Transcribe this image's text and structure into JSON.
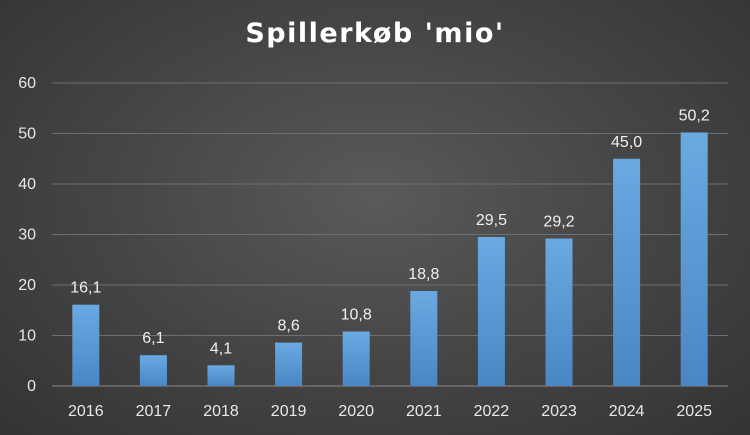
{
  "chart_data": {
    "type": "bar",
    "title": "Spillerkøb 'mio'",
    "categories": [
      "2016",
      "2017",
      "2018",
      "2019",
      "2020",
      "2021",
      "2022",
      "2023",
      "2024",
      "2025"
    ],
    "values": [
      16.1,
      6.1,
      4.1,
      8.6,
      10.8,
      18.8,
      29.5,
      29.2,
      45.0,
      50.2
    ],
    "data_labels": [
      "16,1",
      "6,1",
      "4,1",
      "8,6",
      "10,8",
      "18,8",
      "29,5",
      "29,2",
      "45,0",
      "50,2"
    ],
    "y_ticks": [
      "0",
      "10",
      "20",
      "30",
      "40",
      "50",
      "60"
    ],
    "ylim": [
      0,
      60
    ],
    "xlabel": "",
    "ylabel": "",
    "grid": true,
    "legend": "none",
    "bar_color": "#5b9bd5"
  }
}
